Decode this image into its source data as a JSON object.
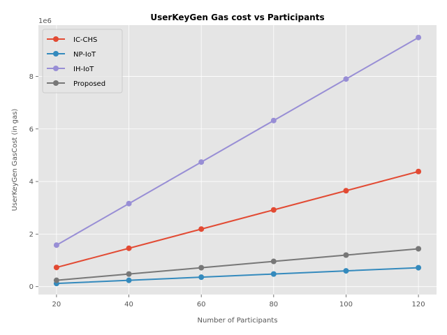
{
  "chart_data": {
    "type": "line",
    "title": "UserKeyGen Gas cost vs Participants",
    "xlabel": "Number of Participants",
    "ylabel": "UserKeyGen GasCost (in gas)",
    "y_offset_label": "1e6",
    "x": [
      20,
      40,
      60,
      80,
      100,
      120
    ],
    "x_ticks": [
      20,
      40,
      60,
      80,
      100,
      120
    ],
    "y_ticks": [
      0,
      2,
      4,
      6,
      8
    ],
    "y_multiplier": 1000000,
    "xlim": [
      15,
      125
    ],
    "ylim": [
      -300000,
      9950000
    ],
    "grid": true,
    "legend_position": "top-left",
    "series": [
      {
        "name": "IC-CHS",
        "color": "#E24A33",
        "values": [
          730000,
          1460000,
          2190000,
          2920000,
          3650000,
          4380000
        ]
      },
      {
        "name": "NP-IoT",
        "color": "#348ABD",
        "values": [
          120000,
          240000,
          360000,
          480000,
          600000,
          720000
        ]
      },
      {
        "name": "IH-IoT",
        "color": "#988ED5",
        "values": [
          1580000,
          3160000,
          4740000,
          6320000,
          7900000,
          9480000
        ]
      },
      {
        "name": "Proposed",
        "color": "#777777",
        "values": [
          240000,
          480000,
          720000,
          960000,
          1200000,
          1440000
        ]
      }
    ]
  }
}
